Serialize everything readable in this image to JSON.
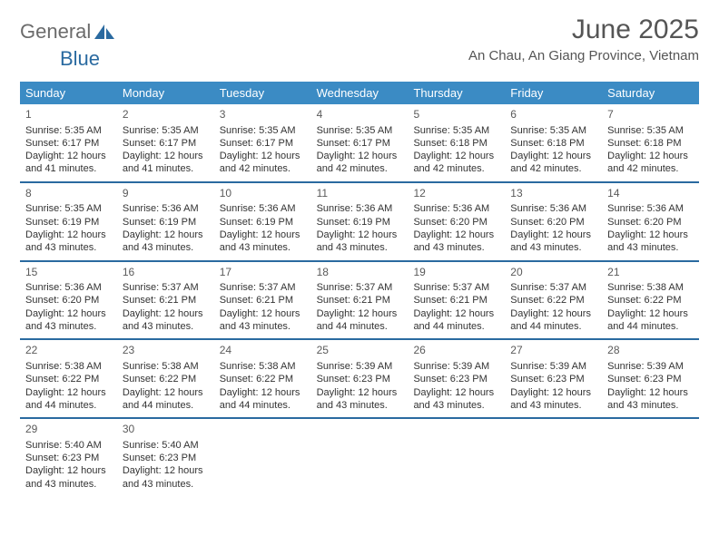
{
  "logo": {
    "general": "General",
    "blue": "Blue"
  },
  "title": "June 2025",
  "location": "An Chau, An Giang Province, Vietnam",
  "colors": {
    "header_blue": "#3b8bc4",
    "divider_blue": "#2a6aa0",
    "logo_blue": "#2a6aa0",
    "text": "#333333",
    "title": "#555555",
    "background": "#ffffff"
  },
  "day_names": [
    "Sunday",
    "Monday",
    "Tuesday",
    "Wednesday",
    "Thursday",
    "Friday",
    "Saturday"
  ],
  "weeks": [
    [
      {
        "day": "1",
        "sunrise": "5:35 AM",
        "sunset": "6:17 PM",
        "daylight_l1": "Daylight: 12 hours",
        "daylight_l2": "and 41 minutes."
      },
      {
        "day": "2",
        "sunrise": "5:35 AM",
        "sunset": "6:17 PM",
        "daylight_l1": "Daylight: 12 hours",
        "daylight_l2": "and 41 minutes."
      },
      {
        "day": "3",
        "sunrise": "5:35 AM",
        "sunset": "6:17 PM",
        "daylight_l1": "Daylight: 12 hours",
        "daylight_l2": "and 42 minutes."
      },
      {
        "day": "4",
        "sunrise": "5:35 AM",
        "sunset": "6:17 PM",
        "daylight_l1": "Daylight: 12 hours",
        "daylight_l2": "and 42 minutes."
      },
      {
        "day": "5",
        "sunrise": "5:35 AM",
        "sunset": "6:18 PM",
        "daylight_l1": "Daylight: 12 hours",
        "daylight_l2": "and 42 minutes."
      },
      {
        "day": "6",
        "sunrise": "5:35 AM",
        "sunset": "6:18 PM",
        "daylight_l1": "Daylight: 12 hours",
        "daylight_l2": "and 42 minutes."
      },
      {
        "day": "7",
        "sunrise": "5:35 AM",
        "sunset": "6:18 PM",
        "daylight_l1": "Daylight: 12 hours",
        "daylight_l2": "and 42 minutes."
      }
    ],
    [
      {
        "day": "8",
        "sunrise": "5:35 AM",
        "sunset": "6:19 PM",
        "daylight_l1": "Daylight: 12 hours",
        "daylight_l2": "and 43 minutes."
      },
      {
        "day": "9",
        "sunrise": "5:36 AM",
        "sunset": "6:19 PM",
        "daylight_l1": "Daylight: 12 hours",
        "daylight_l2": "and 43 minutes."
      },
      {
        "day": "10",
        "sunrise": "5:36 AM",
        "sunset": "6:19 PM",
        "daylight_l1": "Daylight: 12 hours",
        "daylight_l2": "and 43 minutes."
      },
      {
        "day": "11",
        "sunrise": "5:36 AM",
        "sunset": "6:19 PM",
        "daylight_l1": "Daylight: 12 hours",
        "daylight_l2": "and 43 minutes."
      },
      {
        "day": "12",
        "sunrise": "5:36 AM",
        "sunset": "6:20 PM",
        "daylight_l1": "Daylight: 12 hours",
        "daylight_l2": "and 43 minutes."
      },
      {
        "day": "13",
        "sunrise": "5:36 AM",
        "sunset": "6:20 PM",
        "daylight_l1": "Daylight: 12 hours",
        "daylight_l2": "and 43 minutes."
      },
      {
        "day": "14",
        "sunrise": "5:36 AM",
        "sunset": "6:20 PM",
        "daylight_l1": "Daylight: 12 hours",
        "daylight_l2": "and 43 minutes."
      }
    ],
    [
      {
        "day": "15",
        "sunrise": "5:36 AM",
        "sunset": "6:20 PM",
        "daylight_l1": "Daylight: 12 hours",
        "daylight_l2": "and 43 minutes."
      },
      {
        "day": "16",
        "sunrise": "5:37 AM",
        "sunset": "6:21 PM",
        "daylight_l1": "Daylight: 12 hours",
        "daylight_l2": "and 43 minutes."
      },
      {
        "day": "17",
        "sunrise": "5:37 AM",
        "sunset": "6:21 PM",
        "daylight_l1": "Daylight: 12 hours",
        "daylight_l2": "and 43 minutes."
      },
      {
        "day": "18",
        "sunrise": "5:37 AM",
        "sunset": "6:21 PM",
        "daylight_l1": "Daylight: 12 hours",
        "daylight_l2": "and 44 minutes."
      },
      {
        "day": "19",
        "sunrise": "5:37 AM",
        "sunset": "6:21 PM",
        "daylight_l1": "Daylight: 12 hours",
        "daylight_l2": "and 44 minutes."
      },
      {
        "day": "20",
        "sunrise": "5:37 AM",
        "sunset": "6:22 PM",
        "daylight_l1": "Daylight: 12 hours",
        "daylight_l2": "and 44 minutes."
      },
      {
        "day": "21",
        "sunrise": "5:38 AM",
        "sunset": "6:22 PM",
        "daylight_l1": "Daylight: 12 hours",
        "daylight_l2": "and 44 minutes."
      }
    ],
    [
      {
        "day": "22",
        "sunrise": "5:38 AM",
        "sunset": "6:22 PM",
        "daylight_l1": "Daylight: 12 hours",
        "daylight_l2": "and 44 minutes."
      },
      {
        "day": "23",
        "sunrise": "5:38 AM",
        "sunset": "6:22 PM",
        "daylight_l1": "Daylight: 12 hours",
        "daylight_l2": "and 44 minutes."
      },
      {
        "day": "24",
        "sunrise": "5:38 AM",
        "sunset": "6:22 PM",
        "daylight_l1": "Daylight: 12 hours",
        "daylight_l2": "and 44 minutes."
      },
      {
        "day": "25",
        "sunrise": "5:39 AM",
        "sunset": "6:23 PM",
        "daylight_l1": "Daylight: 12 hours",
        "daylight_l2": "and 43 minutes."
      },
      {
        "day": "26",
        "sunrise": "5:39 AM",
        "sunset": "6:23 PM",
        "daylight_l1": "Daylight: 12 hours",
        "daylight_l2": "and 43 minutes."
      },
      {
        "day": "27",
        "sunrise": "5:39 AM",
        "sunset": "6:23 PM",
        "daylight_l1": "Daylight: 12 hours",
        "daylight_l2": "and 43 minutes."
      },
      {
        "day": "28",
        "sunrise": "5:39 AM",
        "sunset": "6:23 PM",
        "daylight_l1": "Daylight: 12 hours",
        "daylight_l2": "and 43 minutes."
      }
    ],
    [
      {
        "day": "29",
        "sunrise": "5:40 AM",
        "sunset": "6:23 PM",
        "daylight_l1": "Daylight: 12 hours",
        "daylight_l2": "and 43 minutes."
      },
      {
        "day": "30",
        "sunrise": "5:40 AM",
        "sunset": "6:23 PM",
        "daylight_l1": "Daylight: 12 hours",
        "daylight_l2": "and 43 minutes."
      },
      null,
      null,
      null,
      null,
      null
    ]
  ],
  "labels": {
    "sunrise_prefix": "Sunrise: ",
    "sunset_prefix": "Sunset: "
  }
}
